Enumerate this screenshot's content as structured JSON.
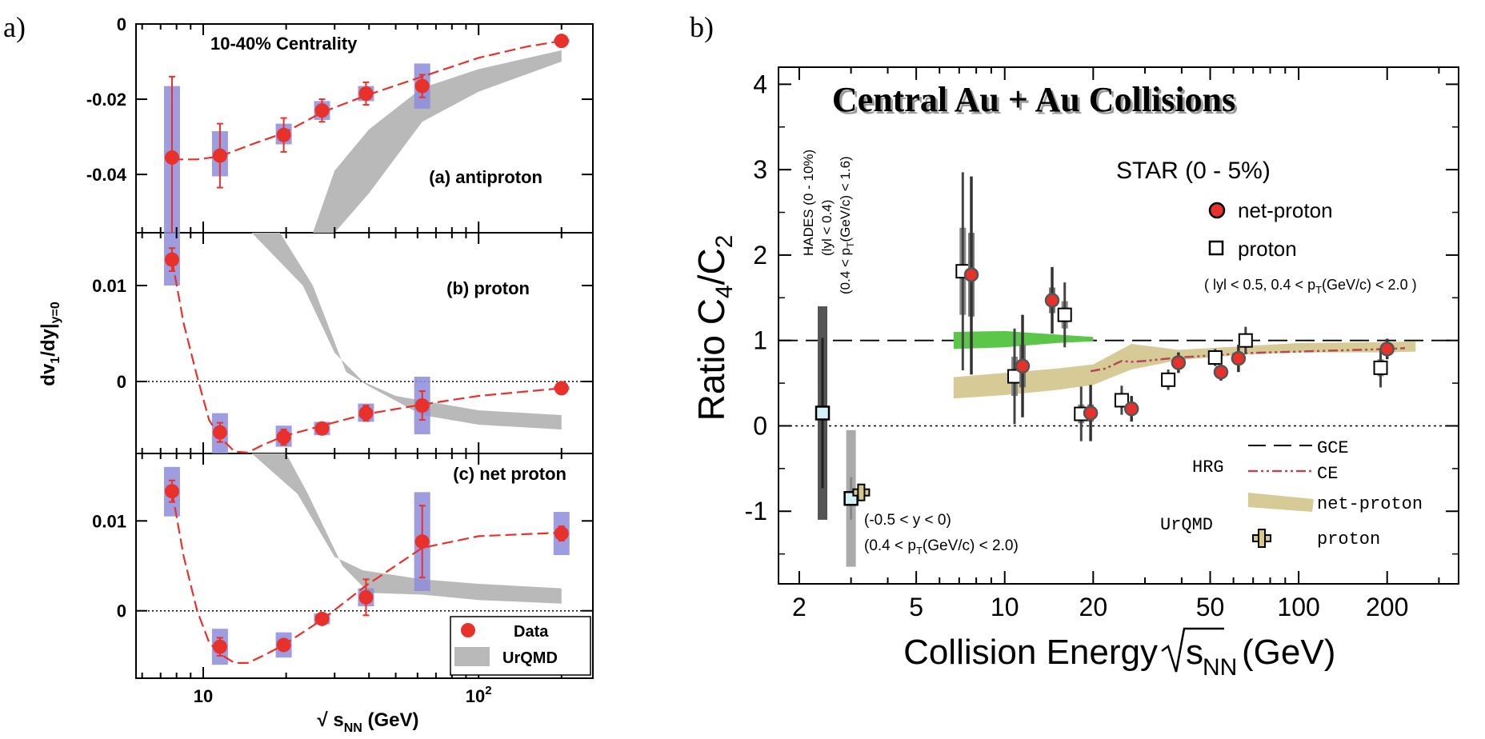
{
  "colors": {
    "data_red": "#e8312a",
    "data_edge": "#b01010",
    "syst_band": "#8c8cd9",
    "urqmd_band": "#b9b9b9",
    "hrg_green": "#5cc64a",
    "urqmd_tan": "#d6cb96",
    "ce_line": "#b24a56",
    "hades_dark": "#555555",
    "hades_light": "#aaaaaa",
    "proton_box": "#d6f2f9",
    "cross_fill": "#d7c78a"
  },
  "chart_data": [
    {
      "type": "scatter",
      "panel_label": "a)",
      "title": "10-40% Centrality",
      "xlabel": "√ s",
      "xlabel_sub": "NN",
      "xlabel_unit": " (GeV)",
      "ylabel": "dv",
      "ylabel_sub": "1",
      "ylabel_mid": "/dy|",
      "ylabel_sub2": "y=0",
      "xscale": "log",
      "xlim": [
        5.7,
        260
      ],
      "xticks": [
        {
          "value": 10,
          "label": "10"
        },
        {
          "value": 100,
          "label": "10",
          "sup": "2"
        }
      ],
      "legend": {
        "data": "Data",
        "model": "UrQMD",
        "position": "bottom-right"
      },
      "subplots": [
        {
          "name": "antiproton",
          "label": "(a) antiproton",
          "ylim": [
            -0.0555,
            0.0
          ],
          "yticks": [
            {
              "value": 0,
              "label": "0"
            },
            {
              "value": -0.02,
              "label": "-0.02"
            },
            {
              "value": -0.04,
              "label": "-0.04"
            }
          ],
          "zero_line": false,
          "points": [
            {
              "x": 7.7,
              "y": -0.0355,
              "err": 0.0215,
              "syst_lo": -0.0555,
              "syst_hi": -0.0165
            },
            {
              "x": 11.5,
              "y": -0.035,
              "err": 0.0085,
              "syst_lo": -0.0405,
              "syst_hi": -0.0285
            },
            {
              "x": 19.6,
              "y": -0.0295,
              "err": 0.0045,
              "syst_lo": -0.032,
              "syst_hi": -0.0265
            },
            {
              "x": 27,
              "y": -0.023,
              "err": 0.003,
              "syst_lo": -0.0255,
              "syst_hi": -0.0205
            },
            {
              "x": 39,
              "y": -0.0185,
              "err": 0.003,
              "syst_lo": -0.0205,
              "syst_hi": -0.0165
            },
            {
              "x": 62.4,
              "y": -0.0165,
              "err": 0.003,
              "syst_lo": -0.0225,
              "syst_hi": -0.0105
            },
            {
              "x": 200,
              "y": -0.0045,
              "err": 0.0003,
              "syst_lo": -0.005,
              "syst_hi": -0.004
            }
          ],
          "curve": [
            [
              7.7,
              -0.036
            ],
            [
              9.5,
              -0.036
            ],
            [
              11.5,
              -0.0352
            ],
            [
              15,
              -0.032
            ],
            [
              19.6,
              -0.029
            ],
            [
              27,
              -0.0235
            ],
            [
              39,
              -0.019
            ],
            [
              62.4,
              -0.014
            ],
            [
              100,
              -0.009
            ],
            [
              150,
              -0.006
            ],
            [
              200,
              -0.0045
            ]
          ],
          "urqmd_upper": [
            [
              25,
              -0.0555
            ],
            [
              30,
              -0.039
            ],
            [
              40,
              -0.028
            ],
            [
              62.4,
              -0.017
            ],
            [
              100,
              -0.012
            ],
            [
              200,
              -0.007
            ]
          ],
          "urqmd_lower": [
            [
              25,
              -0.0555
            ],
            [
              30,
              -0.0555
            ],
            [
              40,
              -0.045
            ],
            [
              62.4,
              -0.026
            ],
            [
              100,
              -0.018
            ],
            [
              200,
              -0.01
            ]
          ]
        },
        {
          "name": "proton",
          "label": "(b) proton",
          "ylim": [
            -0.0075,
            0.0155
          ],
          "yticks": [
            {
              "value": 0.01,
              "label": "0.01"
            },
            {
              "value": 0,
              "label": "0"
            }
          ],
          "zero_line": true,
          "points": [
            {
              "x": 7.7,
              "y": 0.0127,
              "err": 0.0012,
              "syst_lo": 0.01,
              "syst_hi": 0.0155
            },
            {
              "x": 11.5,
              "y": -0.0053,
              "err": 0.001,
              "syst_lo": -0.0075,
              "syst_hi": -0.0033
            },
            {
              "x": 19.6,
              "y": -0.0058,
              "err": 0.0008,
              "syst_lo": -0.0068,
              "syst_hi": -0.0046
            },
            {
              "x": 27,
              "y": -0.0049,
              "err": 0.0006,
              "syst_lo": -0.0056,
              "syst_hi": -0.0042
            },
            {
              "x": 39,
              "y": -0.0033,
              "err": 0.0008,
              "syst_lo": -0.0042,
              "syst_hi": -0.0023
            },
            {
              "x": 62.4,
              "y": -0.0025,
              "err": 0.0015,
              "syst_lo": -0.0055,
              "syst_hi": 0.0005
            },
            {
              "x": 200,
              "y": -0.0007,
              "err": 0.0002,
              "syst_lo": -0.0009,
              "syst_hi": -0.0005
            }
          ],
          "curve": [
            [
              7.7,
              0.0127
            ],
            [
              8.5,
              0.006
            ],
            [
              9.5,
              0.0005
            ],
            [
              10.5,
              -0.004
            ],
            [
              11.5,
              -0.0058
            ],
            [
              13,
              -0.0073
            ],
            [
              14.5,
              -0.0074
            ],
            [
              16.5,
              -0.0066
            ],
            [
              19.6,
              -0.0057
            ],
            [
              27,
              -0.0046
            ],
            [
              39,
              -0.0034
            ],
            [
              62.4,
              -0.0024
            ],
            [
              100,
              -0.0015
            ],
            [
              200,
              -0.0007
            ]
          ],
          "urqmd_upper": [
            [
              15,
              0.0155
            ],
            [
              23,
              0.01
            ],
            [
              30,
              0.003
            ],
            [
              38,
              0.0
            ],
            [
              50,
              -0.0015
            ],
            [
              62.4,
              -0.002
            ],
            [
              100,
              -0.003
            ],
            [
              200,
              -0.0035
            ]
          ],
          "urqmd_lower": [
            [
              19,
              0.0155
            ],
            [
              25,
              0.01
            ],
            [
              33,
              0.001
            ],
            [
              40,
              -0.0005
            ],
            [
              62.4,
              -0.0035
            ],
            [
              100,
              -0.0045
            ],
            [
              200,
              -0.005
            ]
          ]
        },
        {
          "name": "net proton",
          "label": "(c) net proton",
          "ylim": [
            -0.0075,
            0.0175
          ],
          "yticks": [
            {
              "value": 0.01,
              "label": "0.01"
            },
            {
              "value": 0,
              "label": "0"
            }
          ],
          "zero_line": true,
          "points": [
            {
              "x": 7.7,
              "y": 0.0133,
              "err": 0.0012,
              "syst_lo": 0.0105,
              "syst_hi": 0.016
            },
            {
              "x": 11.5,
              "y": -0.004,
              "err": 0.001,
              "syst_lo": -0.006,
              "syst_hi": -0.002
            },
            {
              "x": 19.6,
              "y": -0.0038,
              "err": 0.0006,
              "syst_lo": -0.0052,
              "syst_hi": -0.0024
            },
            {
              "x": 27,
              "y": -0.0009,
              "err": 0.0005,
              "syst_lo": -0.0015,
              "syst_hi": -0.0003
            },
            {
              "x": 39,
              "y": 0.0015,
              "err": 0.002,
              "syst_lo": 0.0005,
              "syst_hi": 0.0025
            },
            {
              "x": 62.4,
              "y": 0.0077,
              "err": 0.004,
              "syst_lo": 0.0022,
              "syst_hi": 0.0132
            },
            {
              "x": 200,
              "y": 0.0086,
              "err": 0.0008,
              "syst_lo": 0.0062,
              "syst_hi": 0.011
            }
          ],
          "curve": [
            [
              7.7,
              0.0133
            ],
            [
              8.5,
              0.006
            ],
            [
              9.5,
              0.0
            ],
            [
              10.5,
              -0.0035
            ],
            [
              11.5,
              -0.0048
            ],
            [
              13,
              -0.0058
            ],
            [
              14.5,
              -0.0058
            ],
            [
              16.5,
              -0.005
            ],
            [
              19.6,
              -0.0038
            ],
            [
              27,
              -0.001
            ],
            [
              39,
              0.0028
            ],
            [
              62.4,
              0.007
            ],
            [
              100,
              0.0083
            ],
            [
              200,
              0.0087
            ]
          ],
          "urqmd_upper": [
            [
              15,
              0.0175
            ],
            [
              22,
              0.013
            ],
            [
              30,
              0.006
            ],
            [
              38,
              0.0045
            ],
            [
              62.4,
              0.0035
            ],
            [
              100,
              0.003
            ],
            [
              200,
              0.0025
            ]
          ],
          "urqmd_lower": [
            [
              20,
              0.0175
            ],
            [
              24,
              0.013
            ],
            [
              32,
              0.005
            ],
            [
              40,
              0.002
            ],
            [
              62.4,
              0.0018
            ],
            [
              100,
              0.0012
            ],
            [
              200,
              0.0008
            ]
          ]
        }
      ]
    },
    {
      "type": "scatter",
      "panel_label": "b)",
      "title": "Central Au + Au Collisions",
      "xlabel": "Collision Energy ",
      "xlabel_sub": "NN",
      "xlabel_unit": " (GeV)",
      "ylabel": "Ratio C",
      "ylabel_sub1": "4",
      "ylabel_slash": "/C",
      "ylabel_sub2": "2",
      "xscale": "log",
      "xlim": [
        1.7,
        350
      ],
      "ylim": [
        -1.85,
        4.2
      ],
      "xticks": [
        2,
        5,
        10,
        20,
        50,
        100,
        200
      ],
      "yticks": [
        -1,
        0,
        1,
        2,
        3,
        4
      ],
      "reference_lines": [
        1,
        0
      ],
      "legend": {
        "header": "STAR (0 - 5%)",
        "net_proton": "net-proton",
        "proton": "proton",
        "cuts": "( lyl < 0.5,  0.4 < p",
        "cuts_sub": "T",
        "cuts_tail": "(GeV/c) < 2.0 )",
        "hrg": "HRG",
        "gce": "GCE",
        "ce": "CE",
        "urqmd": "UrQMD",
        "urqmd_net": "net-proton",
        "urqmd_proton": "proton"
      },
      "annotations": {
        "hades_1": "HADES (0 - 10%)",
        "hades_2": "(lyl < 0.4)",
        "hades_3": "(0.4 < p",
        "hades_3_sub": "T",
        "hades_3_tail": "(GeV/c) < 1.6)",
        "fxt_1": "(-0.5 < y < 0)",
        "fxt_2": "(0.4 < p",
        "fxt_2_sub": "T",
        "fxt_2_tail": "(GeV/c) < 2.0)"
      },
      "net_proton": [
        {
          "x": 7.7,
          "y": 1.77,
          "stat": [
            0.6,
            2.92
          ],
          "syst": [
            1.28,
            2.26
          ]
        },
        {
          "x": 11.5,
          "y": 0.7,
          "stat": [
            0.1,
            1.3
          ],
          "syst": [
            0.45,
            0.95
          ]
        },
        {
          "x": 14.5,
          "y": 1.47,
          "stat": [
            1.08,
            1.86
          ],
          "syst": [
            1.32,
            1.62
          ]
        },
        {
          "x": 19.6,
          "y": 0.15,
          "stat": [
            -0.18,
            0.48
          ],
          "syst": [
            0.05,
            0.25
          ]
        },
        {
          "x": 27,
          "y": 0.2,
          "stat": [
            0.05,
            0.35
          ],
          "syst": [
            0.12,
            0.28
          ]
        },
        {
          "x": 39,
          "y": 0.74,
          "stat": [
            0.62,
            0.86
          ],
          "syst": [
            0.68,
            0.8
          ]
        },
        {
          "x": 54.4,
          "y": 0.63,
          "stat": [
            0.53,
            0.73
          ],
          "syst": [
            0.58,
            0.68
          ]
        },
        {
          "x": 62.4,
          "y": 0.79,
          "stat": [
            0.63,
            0.95
          ],
          "syst": [
            0.72,
            0.86
          ]
        },
        {
          "x": 200,
          "y": 0.9,
          "stat": [
            0.78,
            1.02
          ],
          "syst": [
            0.84,
            0.96
          ]
        }
      ],
      "proton": [
        {
          "x": 7.2,
          "y": 1.81,
          "stat": [
            0.65,
            2.97
          ],
          "syst": [
            1.3,
            2.32
          ]
        },
        {
          "x": 10.8,
          "y": 0.58,
          "stat": [
            0.02,
            1.14
          ],
          "syst": [
            0.35,
            0.81
          ]
        },
        {
          "x": 16.0,
          "y": 1.3,
          "stat": [
            0.92,
            1.68
          ],
          "syst": [
            1.14,
            1.46
          ]
        },
        {
          "x": 18.2,
          "y": 0.14,
          "stat": [
            -0.18,
            0.46
          ],
          "syst": [
            0.03,
            0.25
          ]
        },
        {
          "x": 25.0,
          "y": 0.3,
          "stat": [
            0.13,
            0.47
          ],
          "syst": [
            0.22,
            0.38
          ]
        },
        {
          "x": 36.0,
          "y": 0.54,
          "stat": [
            0.42,
            0.66
          ],
          "syst": [
            0.48,
            0.6
          ]
        },
        {
          "x": 52.0,
          "y": 0.8,
          "stat": [
            0.7,
            0.9
          ],
          "syst": [
            0.75,
            0.85
          ]
        },
        {
          "x": 66.0,
          "y": 1.0,
          "stat": [
            0.84,
            1.16
          ],
          "syst": [
            0.93,
            1.07
          ]
        },
        {
          "x": 190,
          "y": 0.68,
          "stat": [
            0.45,
            0.91
          ],
          "syst": [
            0.58,
            0.78
          ]
        }
      ],
      "hades": {
        "x": 2.4,
        "y": 0.15,
        "stat": [
          -0.73,
          1.03
        ],
        "syst": [
          -1.1,
          1.4
        ]
      },
      "fxt_proton": {
        "x": 3.0,
        "y": -0.85,
        "stat": [
          -1.1,
          -0.6
        ],
        "syst": [
          -1.65,
          -0.05
        ]
      },
      "urqmd_cross": {
        "x": 3.25,
        "y": -0.78
      },
      "hrg_ce": [
        [
          19.6,
          0.64
        ],
        [
          22,
          0.67
        ],
        [
          25,
          0.76
        ],
        [
          27,
          0.75
        ],
        [
          30,
          0.76
        ],
        [
          39,
          0.8
        ],
        [
          54.4,
          0.83
        ],
        [
          62.4,
          0.85
        ],
        [
          100,
          0.87
        ],
        [
          200,
          0.9
        ],
        [
          230,
          0.91
        ]
      ],
      "hrg_gce_green_upper": [
        [
          6.7,
          1.1
        ],
        [
          10,
          1.11
        ],
        [
          15,
          1.07
        ],
        [
          20,
          1.04
        ]
      ],
      "hrg_gce_green_lower": [
        [
          6.7,
          0.9
        ],
        [
          10,
          0.92
        ],
        [
          15,
          0.97
        ],
        [
          20,
          0.99
        ]
      ],
      "urqmd_band_upper": [
        [
          6.7,
          0.57
        ],
        [
          10,
          0.62
        ],
        [
          15,
          0.67
        ],
        [
          20,
          0.72
        ],
        [
          27,
          0.96
        ],
        [
          39,
          0.89
        ],
        [
          62.4,
          0.93
        ],
        [
          100,
          0.97
        ],
        [
          200,
          0.98
        ],
        [
          250,
          0.99
        ]
      ],
      "urqmd_band_lower": [
        [
          6.7,
          0.32
        ],
        [
          10,
          0.36
        ],
        [
          15,
          0.42
        ],
        [
          20,
          0.48
        ],
        [
          27,
          0.66
        ],
        [
          39,
          0.77
        ],
        [
          62.4,
          0.83
        ],
        [
          100,
          0.86
        ],
        [
          200,
          0.86
        ],
        [
          250,
          0.87
        ]
      ]
    }
  ]
}
